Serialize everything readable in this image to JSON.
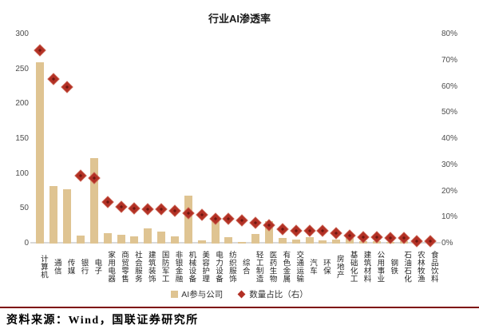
{
  "chart_data": {
    "type": "bar",
    "title": "行业AI渗透率",
    "categories": [
      "计算机",
      "通信",
      "传媒",
      "银行",
      "电子",
      "家用电器",
      "商贸零售",
      "社会服务",
      "建筑装饰",
      "国防军工",
      "非银金融",
      "机械设备",
      "美容护理",
      "电力设备",
      "纺织服饰",
      "综合",
      "轻工制造",
      "医药生物",
      "有色金属",
      "交通运输",
      "汽车",
      "环保",
      "房地产",
      "基础化工",
      "建筑材料",
      "公用事业",
      "钢铁",
      "石油石化",
      "农林牧渔",
      "食品饮料"
    ],
    "series": [
      {
        "name": "AI参与公司",
        "type": "bar",
        "axis": "left",
        "values": [
          260,
          82,
          78,
          11,
          123,
          15,
          13,
          10,
          22,
          17,
          10,
          69,
          5,
          35,
          9,
          2,
          14,
          32,
          8,
          6,
          9,
          5,
          6,
          8,
          3,
          3,
          2,
          3,
          2,
          2
        ]
      },
      {
        "name": "数量占比（右）",
        "type": "scatter",
        "axis": "right",
        "values": [
          74,
          63,
          60,
          26,
          25,
          16,
          14,
          13.5,
          13,
          13,
          12.5,
          11.5,
          11,
          9.5,
          9.5,
          9,
          8,
          7,
          5.5,
          5,
          5,
          5,
          4,
          3,
          2.5,
          2.5,
          2,
          2,
          1,
          1
        ]
      }
    ],
    "left_axis": {
      "min": 0,
      "max": 300,
      "ticks": [
        0,
        50,
        100,
        150,
        200,
        250,
        300
      ]
    },
    "right_axis": {
      "min": 0,
      "max": 80,
      "tick_step": 10,
      "ticks": [
        "0%",
        "10%",
        "20%",
        "30%",
        "40%",
        "50%",
        "60%",
        "70%",
        "80%"
      ]
    },
    "grid": "off",
    "legend_position": "bottom"
  },
  "colors": {
    "bar": "#dfc492",
    "marker": "#b23025",
    "marker_core": "#6e1710",
    "divider": "#7e0b09"
  },
  "source": {
    "text": "资料来源：Wind，国联证券研究所"
  }
}
